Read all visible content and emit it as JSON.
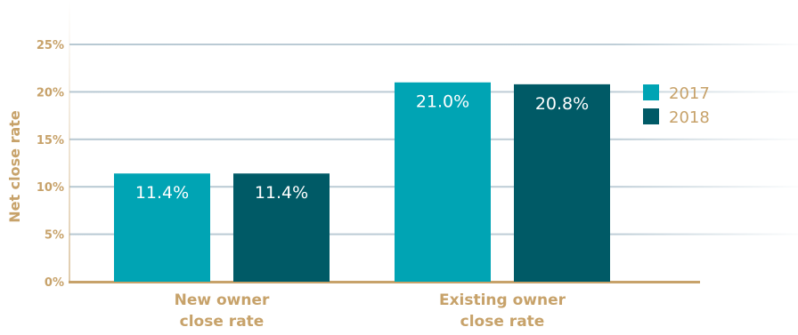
{
  "chart_data": {
    "type": "bar",
    "title": "",
    "xlabel": "",
    "ylabel": "Net close rate",
    "categories": [
      [
        "New owner",
        "close rate"
      ],
      [
        "Existing owner",
        "close rate"
      ]
    ],
    "series": [
      {
        "name": "2017",
        "values": [
          11.4,
          21.0
        ],
        "labels": [
          "11.4%",
          "21.0%"
        ],
        "color": "#00a4b4"
      },
      {
        "name": "2018",
        "values": [
          11.4,
          20.8
        ],
        "labels": [
          "11.4%",
          "20.8%"
        ],
        "color": "#005a66"
      }
    ],
    "ylim": [
      0,
      25
    ],
    "yticks": [
      {
        "value": 0,
        "label": "0%"
      },
      {
        "value": 5,
        "label": "5%"
      },
      {
        "value": 10,
        "label": "10%"
      },
      {
        "value": 15,
        "label": "15%"
      },
      {
        "value": 20,
        "label": "20%"
      },
      {
        "value": 25,
        "label": "25%"
      }
    ],
    "grid": true,
    "legend_position": "right",
    "colors": {
      "text": "#c7a26a",
      "grid": "#b8c9d3",
      "axis": "#c7a26a",
      "data_label": "#ffffff"
    }
  }
}
